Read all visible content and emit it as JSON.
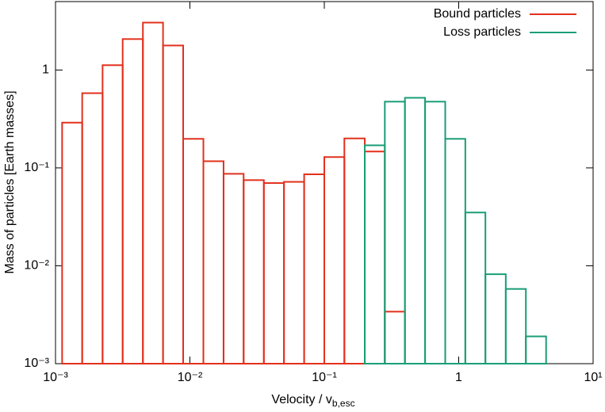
{
  "chart_data": {
    "type": "histogram",
    "xlabel": "Velocity / v",
    "xlabel_subscript": "b,esc",
    "ylabel": "Mass of particles [Earth masses]",
    "log_x": true,
    "log_y": true,
    "xlim": [
      0.001,
      10
    ],
    "ylim": [
      0.001,
      5
    ],
    "xticks": [
      {
        "value": 0.001,
        "label": "10⁻³"
      },
      {
        "value": 0.01,
        "label": "10⁻²"
      },
      {
        "value": 0.1,
        "label": "10⁻¹"
      },
      1,
      {
        "value": 10,
        "label": "10¹"
      }
    ],
    "yticks": [
      {
        "value": 0.001,
        "label": "10⁻³"
      },
      {
        "value": 0.01,
        "label": "10⁻²"
      },
      {
        "value": 0.1,
        "label": "10⁻¹"
      },
      1
    ],
    "legend": "upper right",
    "series": [
      {
        "name": "Bound particles",
        "color": "#e2311d",
        "bins": [
          0.00112,
          0.00158,
          0.00224,
          0.00316,
          0.00447,
          0.00631,
          0.00891,
          0.0126,
          0.0178,
          0.0251,
          0.0355,
          0.0501,
          0.0708,
          0.1,
          0.141,
          0.2,
          0.282,
          0.398
        ],
        "values": [
          0.29,
          0.58,
          1.12,
          2.07,
          3.05,
          1.78,
          0.198,
          0.117,
          0.087,
          0.075,
          0.07,
          0.072,
          0.086,
          0.129,
          0.2,
          0.147,
          0.0034
        ]
      },
      {
        "name": "Loss particles",
        "color": "#1a9e77",
        "bins": [
          0.2,
          0.282,
          0.398,
          0.562,
          0.794,
          1.12,
          1.58,
          2.24,
          3.16,
          4.47
        ],
        "values": [
          0.17,
          0.475,
          0.52,
          0.475,
          0.198,
          0.035,
          0.0082,
          0.0058,
          0.0019
        ]
      }
    ]
  }
}
